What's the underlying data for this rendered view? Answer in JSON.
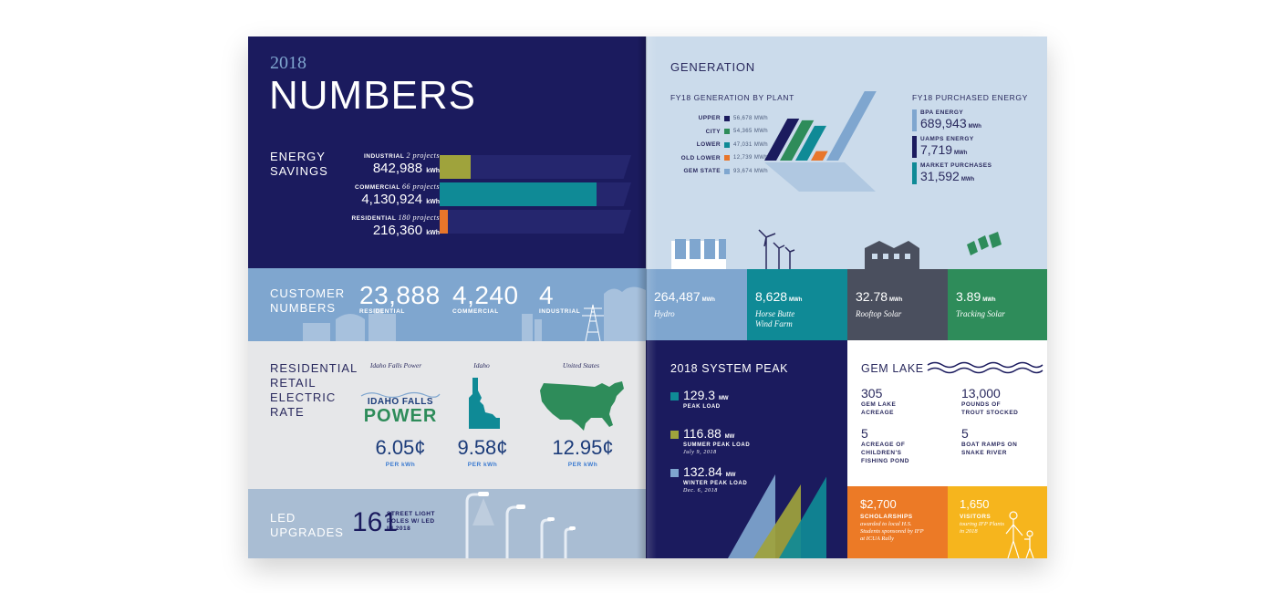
{
  "left": {
    "year": "2018",
    "title": "NUMBERS",
    "energy": {
      "label": "ENERGY\nSAVINGS",
      "items": [
        {
          "name": "INDUSTRIAL",
          "projects": "2 projects",
          "value": "842,988",
          "unit": "kWh",
          "color": "#9fa33c",
          "share": 0.2
        },
        {
          "name": "COMMERCIAL",
          "projects": "66 projects",
          "value": "4,130,924",
          "unit": "kWh",
          "color": "#0f8a96",
          "share": 1.0
        },
        {
          "name": "RESIDENTIAL",
          "projects": "180 projects",
          "value": "216,360",
          "unit": "kWh",
          "color": "#e8762b",
          "share": 0.05
        }
      ]
    },
    "customers": {
      "label": "CUSTOMER\nNUMBERS",
      "items": [
        {
          "value": "23,888",
          "label": "RESIDENTIAL"
        },
        {
          "value": "4,240",
          "label": "COMMERCIAL"
        },
        {
          "value": "4",
          "label": "INDUSTRIAL"
        }
      ]
    },
    "rates": {
      "label": "RESIDENTIAL\nRETAIL\nELECTRIC\nRATE",
      "logo_top": "IDAHO FALLS",
      "logo_bottom": "POWER",
      "items": [
        {
          "head": "Idaho Falls Power",
          "value": "6.05¢",
          "unit": "PER kWh"
        },
        {
          "head": "Idaho",
          "value": "9.58¢",
          "unit": "PER kWh"
        },
        {
          "head": "United States",
          "value": "12.95¢",
          "unit": "PER kWh"
        }
      ]
    },
    "led": {
      "label": "LED\nUPGRADES",
      "value": "161",
      "caption": "STREET LIGHT\nPOLES W/ LED\nIN 2018"
    }
  },
  "right": {
    "generation": {
      "title": "GENERATION",
      "by_plant_title": "FY18 GENERATION BY PLANT",
      "plants": [
        {
          "name": "UPPER",
          "value": "56,678",
          "unit": "MWh",
          "color": "#1b1b5e"
        },
        {
          "name": "CITY",
          "value": "54,365",
          "unit": "MWh",
          "color": "#2e8c5a"
        },
        {
          "name": "LOWER",
          "value": "47,031",
          "unit": "MWh",
          "color": "#0f8a96"
        },
        {
          "name": "OLD LOWER",
          "value": "12,739",
          "unit": "MWh",
          "color": "#e8762b"
        },
        {
          "name": "GEM STATE",
          "value": "93,674",
          "unit": "MWh",
          "color": "#7fa6cf"
        }
      ],
      "purchased_title": "FY18 PURCHASED ENERGY",
      "purchased": [
        {
          "name": "BPA ENERGY",
          "value": "689,943",
          "unit": "MWh",
          "color": "#7fa6cf"
        },
        {
          "name": "UAMPS ENERGY",
          "value": "7,719",
          "unit": "MWh",
          "color": "#1b1b5e"
        },
        {
          "name": "MARKET PURCHASES",
          "value": "31,592",
          "unit": "MWh",
          "color": "#0f8a96"
        }
      ]
    },
    "tiles": [
      {
        "value": "264,487",
        "unit": "MWh",
        "caption": "Hydro",
        "color": "#7fa6cf"
      },
      {
        "value": "8,628",
        "unit": "MWh",
        "caption": "Horse Butte\nWind Farm",
        "color": "#0f8a96"
      },
      {
        "value": "32.78",
        "unit": "MWh",
        "caption": "Rooftop Solar",
        "color": "#4a4f5e"
      },
      {
        "value": "3.89",
        "unit": "MWh",
        "caption": "Tracking Solar",
        "color": "#2e8c5a"
      }
    ],
    "peak": {
      "title": "2018 SYSTEM PEAK",
      "items": [
        {
          "value": "129.3",
          "unit": "MW",
          "label": "PEAK LOAD",
          "date": "",
          "color": "#0f8a96"
        },
        {
          "value": "116.88",
          "unit": "MW",
          "label": "SUMMER PEAK LOAD",
          "date": "July 9, 2018",
          "color": "#9fa33c"
        },
        {
          "value": "132.84",
          "unit": "MW",
          "label": "WINTER PEAK LOAD",
          "date": "Dec. 6, 2018",
          "color": "#7fa6cf"
        }
      ]
    },
    "gem_lake": {
      "title": "GEM LAKE",
      "items": [
        {
          "value": "305",
          "label": "GEM LAKE\nACREAGE"
        },
        {
          "value": "13,000",
          "label": "POUNDS OF\nTROUT STOCKED"
        },
        {
          "value": "5",
          "label": "ACREAGE OF\nCHILDREN'S\nFISHING POND"
        },
        {
          "value": "5",
          "label": "BOAT RAMPS ON\nSNAKE RIVER"
        }
      ]
    },
    "scholarships": {
      "value": "$2,700",
      "label": "SCHOLARSHIPS",
      "caption": "awarded to local H.S.\nStudents sponsored by IFP\nat ICUA Rally"
    },
    "visitors": {
      "value": "1,650",
      "label": "VISITORS",
      "caption": "touring IFP Plants\nin 2018"
    }
  }
}
